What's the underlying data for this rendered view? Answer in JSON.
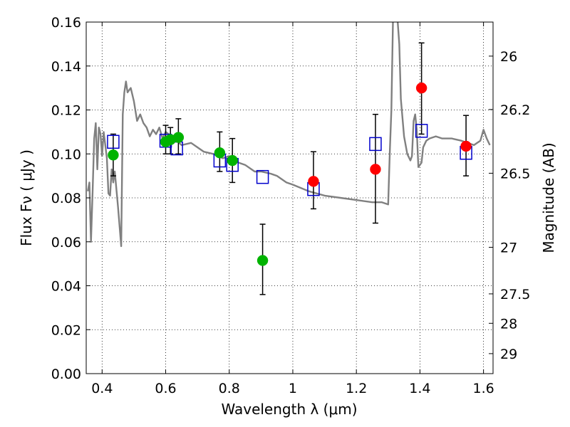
{
  "chart_data": {
    "type": "scatter",
    "xlabel": "Wavelength  λ (μm)",
    "ylabel": "Flux  Fν  ( μJy )",
    "y2label": "Magnitude (AB)",
    "xlim": [
      0.35,
      1.63
    ],
    "ylim": [
      0.0,
      0.16
    ],
    "grid": true,
    "colors": {
      "spectrum": "#808080",
      "model": "#0000cc",
      "green": "#00b300",
      "red": "#ff0000",
      "errorbar": "#000000"
    },
    "x_ticks": [
      {
        "value": 0.4,
        "label": "0.4"
      },
      {
        "value": 0.6,
        "label": "0.6"
      },
      {
        "value": 0.8,
        "label": "0.8"
      },
      {
        "value": 1.0,
        "label": "1"
      },
      {
        "value": 1.2,
        "label": "1.2"
      },
      {
        "value": 1.4,
        "label": "1.4"
      },
      {
        "value": 1.6,
        "label": "1.6"
      }
    ],
    "y_ticks": [
      {
        "value": 0.0,
        "label": "0.00"
      },
      {
        "value": 0.02,
        "label": "0.02"
      },
      {
        "value": 0.04,
        "label": "0.04"
      },
      {
        "value": 0.06,
        "label": "0.06"
      },
      {
        "value": 0.08,
        "label": "0.08"
      },
      {
        "value": 0.1,
        "label": "0.10"
      },
      {
        "value": 0.12,
        "label": "0.12"
      },
      {
        "value": 0.14,
        "label": "0.14"
      },
      {
        "value": 0.16,
        "label": "0.16"
      }
    ],
    "y2_ticks": [
      {
        "label": "26",
        "flux": 0.1445
      },
      {
        "label": "26.2",
        "flux": 0.1202
      },
      {
        "label": "26.5",
        "flux": 0.0912
      },
      {
        "label": "27",
        "flux": 0.0575
      },
      {
        "label": "27.5",
        "flux": 0.0363
      },
      {
        "label": "28",
        "flux": 0.0229
      },
      {
        "label": "29",
        "flux": 0.0091
      }
    ],
    "spectrum": {
      "x": [
        0.355,
        0.36,
        0.365,
        0.37,
        0.375,
        0.38,
        0.385,
        0.39,
        0.395,
        0.4,
        0.405,
        0.41,
        0.415,
        0.42,
        0.425,
        0.43,
        0.435,
        0.44,
        0.45,
        0.46,
        0.465,
        0.47,
        0.475,
        0.48,
        0.49,
        0.5,
        0.51,
        0.52,
        0.53,
        0.54,
        0.55,
        0.56,
        0.57,
        0.58,
        0.59,
        0.6,
        0.62,
        0.65,
        0.68,
        0.7,
        0.72,
        0.75,
        0.78,
        0.8,
        0.83,
        0.85,
        0.88,
        0.9,
        0.93,
        0.95,
        0.98,
        1.0,
        1.05,
        1.1,
        1.15,
        1.2,
        1.25,
        1.28,
        1.3,
        1.305,
        1.31,
        1.315,
        1.32,
        1.325,
        1.33,
        1.335,
        1.34,
        1.35,
        1.36,
        1.37,
        1.375,
        1.38,
        1.385,
        1.39,
        1.395,
        1.4,
        1.405,
        1.41,
        1.42,
        1.43,
        1.45,
        1.47,
        1.5,
        1.53,
        1.55,
        1.57,
        1.58,
        1.59,
        1.6,
        1.61,
        1.62
      ],
      "y": [
        0.083,
        0.087,
        0.06,
        0.082,
        0.107,
        0.114,
        0.093,
        0.112,
        0.109,
        0.099,
        0.11,
        0.104,
        0.098,
        0.082,
        0.081,
        0.093,
        0.087,
        0.092,
        0.076,
        0.058,
        0.118,
        0.128,
        0.133,
        0.128,
        0.13,
        0.124,
        0.115,
        0.118,
        0.114,
        0.112,
        0.108,
        0.111,
        0.109,
        0.112,
        0.107,
        0.11,
        0.108,
        0.104,
        0.105,
        0.103,
        0.101,
        0.1,
        0.098,
        0.099,
        0.096,
        0.095,
        0.092,
        0.092,
        0.091,
        0.09,
        0.087,
        0.086,
        0.083,
        0.081,
        0.08,
        0.079,
        0.078,
        0.078,
        0.077,
        0.1,
        0.12,
        0.16,
        0.165,
        0.162,
        0.16,
        0.15,
        0.125,
        0.108,
        0.1,
        0.097,
        0.099,
        0.115,
        0.118,
        0.111,
        0.094,
        0.095,
        0.096,
        0.103,
        0.106,
        0.107,
        0.108,
        0.107,
        0.107,
        0.106,
        0.105,
        0.104,
        0.105,
        0.106,
        0.111,
        0.107,
        0.104
      ]
    },
    "model_points": {
      "name": "",
      "marker": "open-square",
      "x": [
        0.435,
        0.6,
        0.635,
        0.77,
        0.81,
        0.905,
        1.065,
        1.26,
        1.405,
        1.545
      ],
      "y": [
        0.1055,
        0.106,
        0.1025,
        0.097,
        0.095,
        0.0895,
        0.084,
        0.1045,
        0.1105,
        0.1005
      ]
    },
    "green_points": {
      "name": "",
      "marker": "filled-circle",
      "x": [
        0.435,
        0.6,
        0.615,
        0.64,
        0.77,
        0.81,
        0.905
      ],
      "y": [
        0.0995,
        0.1055,
        0.1065,
        0.1075,
        0.1005,
        0.097,
        0.0515
      ],
      "yerr_low": [
        0.09,
        0.1,
        0.1,
        0.1,
        0.092,
        0.087,
        0.036
      ],
      "yerr_high": [
        0.109,
        0.113,
        0.112,
        0.116,
        0.11,
        0.107,
        0.068
      ]
    },
    "red_points": {
      "name": "",
      "marker": "filled-circle",
      "x": [
        1.065,
        1.26,
        1.405,
        1.545
      ],
      "y": [
        0.0875,
        0.093,
        0.13,
        0.1035
      ],
      "yerr_low": [
        0.075,
        0.0685,
        0.109,
        0.09
      ],
      "yerr_high": [
        0.101,
        0.118,
        0.1505,
        0.1175
      ]
    }
  }
}
